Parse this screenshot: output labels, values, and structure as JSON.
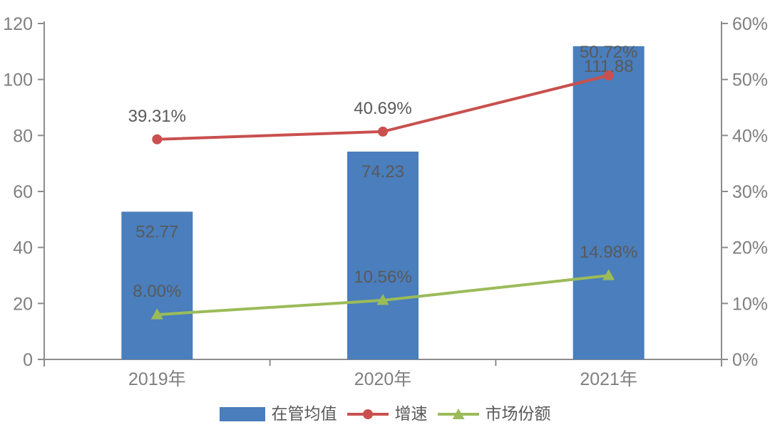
{
  "colors": {
    "bar": "#4A7EBC",
    "growth": "#C9504E",
    "share": "#9BBB59",
    "data_label": "#595959",
    "tick_label": "#7F7F7F",
    "axis": "#8C8C8C",
    "background": "#FFFFFF"
  },
  "chart_data": {
    "type": "combo-bar-line",
    "categories": [
      "2019年",
      "2020年",
      "2021年"
    ],
    "series": [
      {
        "name": "在管均值",
        "type": "bar",
        "axis": "left",
        "color_key": "bar",
        "values": [
          52.77,
          74.23,
          111.88
        ],
        "labels": [
          "52.77",
          "74.23",
          "111.88"
        ]
      },
      {
        "name": "增速",
        "type": "line",
        "marker": "circle",
        "axis": "right",
        "color_key": "growth",
        "values": [
          39.31,
          40.69,
          50.72
        ],
        "labels": [
          "39.31%",
          "40.69%",
          "50.72%"
        ]
      },
      {
        "name": "市场份额",
        "type": "line",
        "marker": "triangle",
        "axis": "right",
        "color_key": "share",
        "values": [
          8.0,
          10.56,
          14.98
        ],
        "labels": [
          "8.00%",
          "10.56%",
          "14.98%"
        ]
      }
    ],
    "left_axis": {
      "min": 0,
      "max": 120,
      "step": 20,
      "tick_labels": [
        "0",
        "20",
        "40",
        "60",
        "80",
        "100",
        "120"
      ]
    },
    "right_axis": {
      "min": 0,
      "max": 60,
      "step": 10,
      "tick_labels": [
        "0%",
        "10%",
        "20%",
        "30%",
        "40%",
        "50%",
        "60%"
      ]
    },
    "grid": false,
    "title": "",
    "legend_position": "bottom",
    "legend": [
      "在管均值",
      "增速",
      "市场份额"
    ]
  }
}
